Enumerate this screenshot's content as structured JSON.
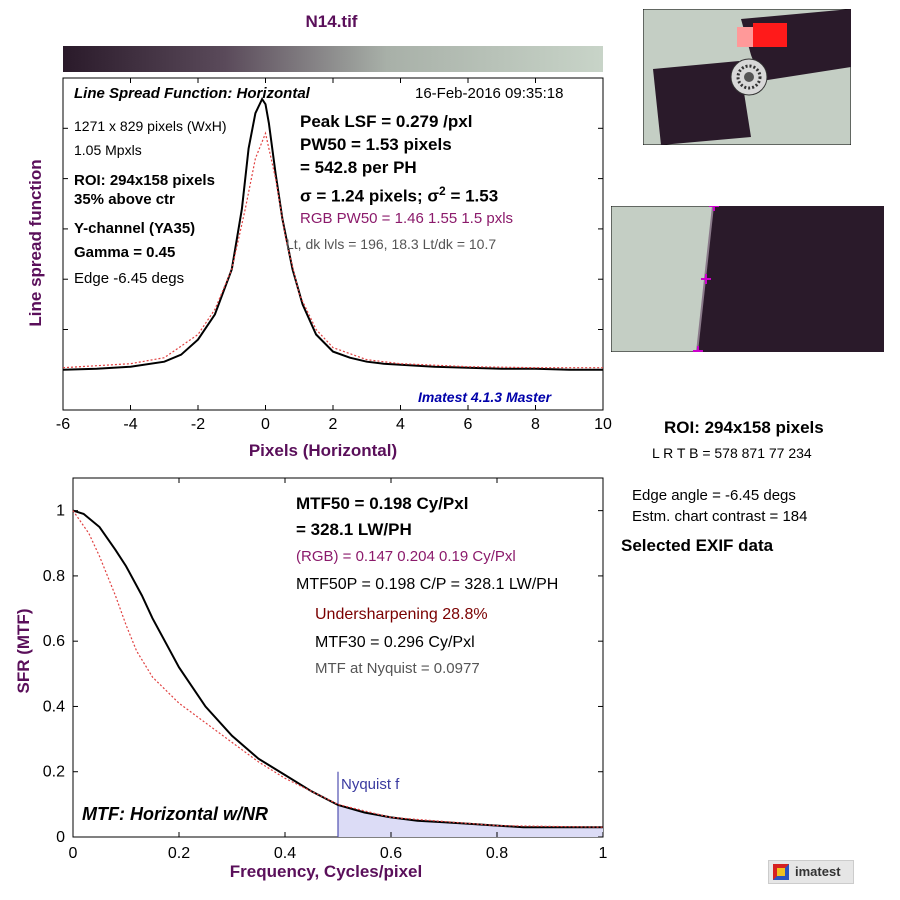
{
  "file_title": "N14.tif",
  "colors": {
    "purple_label": "#5a0f5a",
    "magenta_text": "#8b1a6b",
    "dark_red": "#7a0000",
    "blue_bold": "#0000aa",
    "nyquist_blue": "#3a3aa0",
    "gray_text": "#555555"
  },
  "top_chart": {
    "title": "Line Spread Function: Horizontal",
    "timestamp": "16-Feb-2016 09:35:18",
    "xlabel": "Pixels (Horizontal)",
    "ylabel": "Line spread function",
    "info_left": [
      "1271 x 829 pixels (WxH)",
      "1.05 Mpxls",
      "ROI:  294x158 pixels",
      "35% above ctr",
      "Y-channel  (YA35)",
      "Gamma = 0.45",
      "Edge -6.45 degs"
    ],
    "peak_lsf": "Peak LSF = 0.279 /pxl",
    "pw50": "PW50 = 1.53 pixels",
    "per_ph": "= 542.8 per PH",
    "sigma_a": "σ = 1.24 pixels;  σ",
    "sigma_sup": "2",
    "sigma_b": " = 1.53",
    "rgb_pw50": "RGB PW50 = 1.46  1.55  1.5 pxls",
    "levels": "Lt, dk lvls = 196, 18.3   Lt/dk = 10.7",
    "version": "Imatest 4.1.3 Master"
  },
  "bottom_chart": {
    "title": "MTF: Horizontal w/NR",
    "xlabel": "Frequency, Cycles/pixel",
    "ylabel": "SFR (MTF)",
    "mtf50_a": "MTF50 = 0.198 Cy/Pxl",
    "mtf50_b": "= 328.1 LW/PH",
    "rgb": "(RGB) = 0.147  0.204  0.19 Cy/Pxl",
    "mtf50p": "MTF50P = 0.198 C/P = 328.1 LW/PH",
    "undersharpening": "Undersharpening 28.8%",
    "mtf30": "MTF30 = 0.296 Cy/Pxl",
    "nyquist_value": "MTF at Nyquist = 0.0977",
    "nyquist_label": "Nyquist f"
  },
  "side_panel": {
    "roi": "ROI:  294x158 pixels",
    "lrtb": "L R  T B = 578 871  77 234",
    "edge_angle": "Edge angle = -6.45 degs",
    "contrast": "Estm. chart contrast = 184",
    "exif": "Selected EXIF data",
    "logo_text": "imatest"
  },
  "chart_data": [
    {
      "type": "line",
      "title": "Line Spread Function: Horizontal",
      "xlabel": "Pixels (Horizontal)",
      "ylabel": "Line spread function",
      "xlim": [
        -6,
        10
      ],
      "ylim": [
        -0.03,
        0.3
      ],
      "xticks": [
        -6,
        -4,
        -2,
        0,
        2,
        4,
        6,
        8,
        10
      ],
      "series": [
        {
          "x": [
            -6,
            -5,
            -4,
            -3,
            -2.5,
            -2,
            -1.5,
            -1,
            -0.7,
            -0.5,
            -0.3,
            -0.1,
            0,
            0.1,
            0.3,
            0.5,
            0.8,
            1.1,
            1.5,
            2,
            2.5,
            3,
            3.5,
            4,
            5,
            6,
            7,
            8,
            9,
            10
          ],
          "y": [
            0.01,
            0.011,
            0.013,
            0.018,
            0.025,
            0.04,
            0.065,
            0.11,
            0.17,
            0.23,
            0.265,
            0.279,
            0.274,
            0.255,
            0.205,
            0.16,
            0.11,
            0.075,
            0.045,
            0.028,
            0.022,
            0.018,
            0.016,
            0.015,
            0.013,
            0.012,
            0.011,
            0.011,
            0.01,
            0.01
          ]
        },
        {
          "x": [
            -6,
            -4,
            -3,
            -2,
            -1.5,
            -1,
            -0.6,
            -0.3,
            0,
            0.3,
            0.6,
            1,
            1.5,
            2,
            3,
            4,
            6,
            8,
            10
          ],
          "y": [
            0.012,
            0.016,
            0.022,
            0.045,
            0.07,
            0.11,
            0.17,
            0.22,
            0.245,
            0.2,
            0.14,
            0.085,
            0.05,
            0.032,
            0.02,
            0.016,
            0.013,
            0.012,
            0.012
          ]
        }
      ]
    },
    {
      "type": "line",
      "title": "MTF: Horizontal w/NR",
      "xlabel": "Frequency, Cycles/pixel",
      "ylabel": "SFR (MTF)",
      "xlim": [
        0,
        1
      ],
      "ylim": [
        0,
        1.1
      ],
      "xticks": [
        0,
        0.2,
        0.4,
        0.6,
        0.8,
        1
      ],
      "yticks": [
        0,
        0.2,
        0.4,
        0.6,
        0.8,
        1
      ],
      "nyquist": 0.5,
      "series": [
        {
          "x": [
            0,
            0.02,
            0.05,
            0.08,
            0.1,
            0.13,
            0.15,
            0.18,
            0.2,
            0.25,
            0.3,
            0.35,
            0.4,
            0.45,
            0.5,
            0.55,
            0.6,
            0.65,
            0.7,
            0.75,
            0.8,
            0.85,
            0.9,
            0.95,
            1.0
          ],
          "y": [
            1.0,
            0.99,
            0.95,
            0.88,
            0.83,
            0.74,
            0.67,
            0.58,
            0.52,
            0.4,
            0.31,
            0.24,
            0.19,
            0.14,
            0.098,
            0.075,
            0.06,
            0.05,
            0.045,
            0.04,
            0.035,
            0.03,
            0.03,
            0.03,
            0.03
          ]
        },
        {
          "x": [
            0,
            0.03,
            0.05,
            0.08,
            0.1,
            0.12,
            0.15,
            0.2,
            0.25,
            0.3,
            0.35,
            0.4,
            0.5,
            0.6,
            0.8,
            1.0
          ],
          "y": [
            1.0,
            0.93,
            0.86,
            0.74,
            0.65,
            0.57,
            0.49,
            0.41,
            0.35,
            0.29,
            0.23,
            0.18,
            0.1,
            0.06,
            0.035,
            0.03
          ]
        }
      ]
    }
  ]
}
